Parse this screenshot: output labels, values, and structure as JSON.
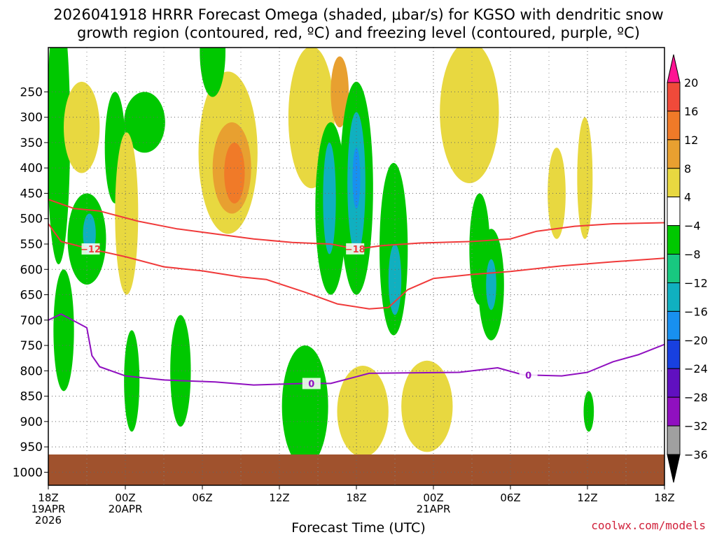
{
  "title_line1": "2026041918 HRRR Forecast Omega (shaded, μbar/s) for KGSO with dendritic snow",
  "title_line2": "growth region (contoured, red, ºC) and freezing level (contoured, purple, ºC)",
  "credit": "coolwx.com/models",
  "chart_data": {
    "type": "heatmap",
    "xlabel": "Forecast Time (UTC)",
    "ylabel": "",
    "x_range_hours": [
      0,
      48
    ],
    "y_range_hPa": [
      1000,
      200
    ],
    "x_ticks": [
      {
        "hour": 0,
        "lines": [
          "18Z",
          "19APR",
          "2026"
        ]
      },
      {
        "hour": 6,
        "lines": [
          "00Z",
          "20APR"
        ]
      },
      {
        "hour": 12,
        "lines": [
          "06Z"
        ]
      },
      {
        "hour": 18,
        "lines": [
          "12Z"
        ]
      },
      {
        "hour": 24,
        "lines": [
          "18Z"
        ]
      },
      {
        "hour": 30,
        "lines": [
          "00Z",
          "21APR"
        ]
      },
      {
        "hour": 36,
        "lines": [
          "06Z"
        ]
      },
      {
        "hour": 42,
        "lines": [
          "12Z"
        ]
      },
      {
        "hour": 48,
        "lines": [
          "18Z"
        ]
      }
    ],
    "y_ticks": [
      250,
      300,
      350,
      400,
      450,
      500,
      550,
      600,
      650,
      700,
      750,
      800,
      850,
      900,
      950,
      1000
    ],
    "grid": true,
    "colorbar": {
      "labels": [
        "20",
        "16",
        "12",
        "8",
        "4",
        "−4",
        "−8",
        "−12",
        "−16",
        "−20",
        "−24",
        "−28",
        "−32",
        "−36"
      ],
      "colors": [
        "#ff1493",
        "#f04a3a",
        "#f07a28",
        "#e8a030",
        "#e8d840",
        "#ffffff",
        "#00c800",
        "#18c880",
        "#10b0c0",
        "#1890f0",
        "#1840e0",
        "#6010c0",
        "#9010c0",
        "#a0a0a0",
        "#000000"
      ]
    },
    "shading": [
      {
        "v": -12,
        "t": 0.8,
        "p": 350,
        "dt": 0.6,
        "dp": 130
      },
      {
        "v": -8,
        "t": 0.8,
        "p": 330,
        "dt": 0.9,
        "dp": 260
      },
      {
        "v": -8,
        "t": 1.2,
        "p": 720,
        "dt": 0.8,
        "dp": 120
      },
      {
        "v": 12,
        "t": 2.7,
        "p": 330,
        "dt": 0.7,
        "dp": 55
      },
      {
        "v": 4,
        "t": 2.6,
        "p": 320,
        "dt": 1.4,
        "dp": 90
      },
      {
        "v": -8,
        "t": 3.0,
        "p": 540,
        "dt": 1.5,
        "dp": 90
      },
      {
        "v": -12,
        "t": 3.2,
        "p": 530,
        "dt": 0.5,
        "dp": 40
      },
      {
        "v": -8,
        "t": 5.2,
        "p": 360,
        "dt": 0.8,
        "dp": 110
      },
      {
        "v": -8,
        "t": 7.5,
        "p": 310,
        "dt": 1.6,
        "dp": 60
      },
      {
        "v": 8,
        "t": 6.0,
        "p": 490,
        "dt": 0.5,
        "dp": 90
      },
      {
        "v": 4,
        "t": 6.1,
        "p": 490,
        "dt": 0.9,
        "dp": 160
      },
      {
        "v": 4,
        "t": 14.0,
        "p": 370,
        "dt": 2.3,
        "dp": 160
      },
      {
        "v": 8,
        "t": 14.3,
        "p": 400,
        "dt": 1.5,
        "dp": 90
      },
      {
        "v": 12,
        "t": 14.5,
        "p": 410,
        "dt": 0.8,
        "dp": 60
      },
      {
        "v": -8,
        "t": 12.8,
        "p": 170,
        "dt": 1.0,
        "dp": 90
      },
      {
        "v": 4,
        "t": 20.5,
        "p": 300,
        "dt": 1.8,
        "dp": 140
      },
      {
        "v": 8,
        "t": 22.7,
        "p": 250,
        "dt": 0.7,
        "dp": 70
      },
      {
        "v": -8,
        "t": 22.0,
        "p": 480,
        "dt": 1.2,
        "dp": 170
      },
      {
        "v": -12,
        "t": 21.9,
        "p": 460,
        "dt": 0.5,
        "dp": 110
      },
      {
        "v": -8,
        "t": 24.0,
        "p": 440,
        "dt": 1.3,
        "dp": 210
      },
      {
        "v": -12,
        "t": 24.0,
        "p": 430,
        "dt": 0.7,
        "dp": 140
      },
      {
        "v": -16,
        "t": 24.0,
        "p": 420,
        "dt": 0.3,
        "dp": 60
      },
      {
        "v": -8,
        "t": 26.9,
        "p": 560,
        "dt": 1.1,
        "dp": 170
      },
      {
        "v": -12,
        "t": 27.0,
        "p": 620,
        "dt": 0.5,
        "dp": 70
      },
      {
        "v": 4,
        "t": 32.8,
        "p": 290,
        "dt": 2.3,
        "dp": 140
      },
      {
        "v": -8,
        "t": 33.6,
        "p": 560,
        "dt": 0.8,
        "dp": 110
      },
      {
        "v": -8,
        "t": 34.5,
        "p": 630,
        "dt": 1.0,
        "dp": 110
      },
      {
        "v": -12,
        "t": 34.5,
        "p": 630,
        "dt": 0.4,
        "dp": 50
      },
      {
        "v": 4,
        "t": 39.6,
        "p": 450,
        "dt": 0.7,
        "dp": 90
      },
      {
        "v": 4,
        "t": 41.8,
        "p": 420,
        "dt": 0.6,
        "dp": 120
      },
      {
        "v": -8,
        "t": 20.0,
        "p": 870,
        "dt": 1.8,
        "dp": 120
      },
      {
        "v": 8,
        "t": 24.2,
        "p": 890,
        "dt": 1.3,
        "dp": 60
      },
      {
        "v": 12,
        "t": 24.2,
        "p": 890,
        "dt": 0.6,
        "dp": 35
      },
      {
        "v": 4,
        "t": 24.5,
        "p": 880,
        "dt": 2.0,
        "dp": 90
      },
      {
        "v": 8,
        "t": 29.2,
        "p": 880,
        "dt": 1.0,
        "dp": 50
      },
      {
        "v": 4,
        "t": 29.5,
        "p": 870,
        "dt": 2.0,
        "dp": 90
      },
      {
        "v": -8,
        "t": 10.3,
        "p": 800,
        "dt": 0.8,
        "dp": 110
      },
      {
        "v": -8,
        "t": 6.5,
        "p": 820,
        "dt": 0.6,
        "dp": 100
      },
      {
        "v": -8,
        "t": 42.1,
        "p": 880,
        "dt": 0.4,
        "dp": 40
      }
    ],
    "red_contours": [
      {
        "label": "−12",
        "label_hour": 3.3,
        "points": [
          [
            0,
            510
          ],
          [
            1,
            545
          ],
          [
            3,
            558
          ],
          [
            6,
            575
          ],
          [
            9,
            595
          ],
          [
            12,
            603
          ],
          [
            15,
            615
          ],
          [
            17,
            620
          ],
          [
            20,
            645
          ],
          [
            22.5,
            668
          ],
          [
            25,
            678
          ],
          [
            26.5,
            675
          ],
          [
            28,
            640
          ],
          [
            30,
            618
          ],
          [
            33,
            610
          ],
          [
            36,
            604
          ],
          [
            40,
            593
          ],
          [
            44,
            585
          ],
          [
            48,
            578
          ]
        ]
      },
      {
        "label": "−18",
        "label_hour": 23.9,
        "points": [
          [
            0,
            462
          ],
          [
            2,
            480
          ],
          [
            4,
            485
          ],
          [
            7,
            505
          ],
          [
            10,
            520
          ],
          [
            13,
            530
          ],
          [
            16,
            540
          ],
          [
            19,
            547
          ],
          [
            22,
            550
          ],
          [
            24,
            560
          ],
          [
            26,
            553
          ],
          [
            29,
            548
          ],
          [
            33,
            545
          ],
          [
            36,
            540
          ],
          [
            38,
            525
          ],
          [
            41,
            515
          ],
          [
            44,
            510
          ],
          [
            48,
            508
          ]
        ]
      }
    ],
    "purple_contour": {
      "label": "0",
      "label_hours": [
        20.5,
        37.4
      ],
      "points": [
        [
          0,
          700
        ],
        [
          1,
          688
        ],
        [
          3,
          715
        ],
        [
          3.4,
          770
        ],
        [
          4,
          792
        ],
        [
          6,
          810
        ],
        [
          9,
          818
        ],
        [
          13,
          822
        ],
        [
          16,
          828
        ],
        [
          20,
          825
        ],
        [
          22,
          825
        ],
        [
          25,
          805
        ],
        [
          28,
          804
        ],
        [
          32,
          803
        ],
        [
          35,
          794
        ],
        [
          37,
          808
        ],
        [
          40,
          810
        ],
        [
          42,
          803
        ],
        [
          44,
          782
        ],
        [
          46,
          768
        ],
        [
          48,
          748
        ]
      ]
    },
    "ground_top_hPa": 965
  }
}
